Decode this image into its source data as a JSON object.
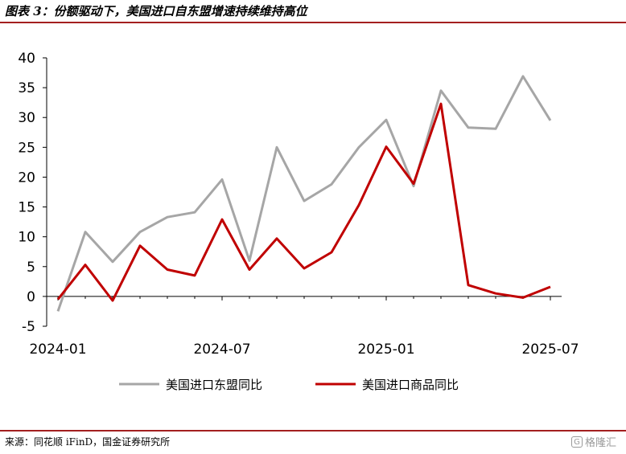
{
  "header": {
    "title": "图表 3：份额驱动下，美国进口自东盟增速持续维持高位"
  },
  "footer": {
    "source": "来源：同花顺 iFinD，国金证券研究所",
    "watermark_icon": "G",
    "watermark_text": "格隆汇"
  },
  "chart_data": {
    "type": "line",
    "title": "",
    "xlabel": "",
    "ylabel": "",
    "ylim": [
      -5,
      40
    ],
    "yticks": [
      -5,
      0,
      5,
      10,
      15,
      20,
      25,
      30,
      35,
      40
    ],
    "ytick_labels": [
      "-5",
      "0",
      "5",
      "10",
      "15",
      "20",
      "25",
      "30",
      "35",
      "40"
    ],
    "x": [
      "2024-01",
      "2024-02",
      "2024-03",
      "2024-04",
      "2024-05",
      "2024-06",
      "2024-07",
      "2024-08",
      "2024-09",
      "2024-10",
      "2024-11",
      "2024-12",
      "2025-01",
      "2025-02",
      "2025-03",
      "2025-04",
      "2025-05",
      "2025-06",
      "2025-07"
    ],
    "xtick_labels": [
      "2024-01",
      "2024-07",
      "2025-01",
      "2025-07"
    ],
    "grid": false,
    "legend": "bottom",
    "series": [
      {
        "name": "美国进口东盟同比",
        "color": "#a6a6a6",
        "values": [
          -2.5,
          10.8,
          5.8,
          10.8,
          13.3,
          14.1,
          19.6,
          6.0,
          25.0,
          16.0,
          18.8,
          25.0,
          29.6,
          18.5,
          34.5,
          28.3,
          28.1,
          36.9,
          29.5
        ]
      },
      {
        "name": "美国进口商品同比",
        "color": "#c00000",
        "values": [
          -0.5,
          5.3,
          -0.7,
          8.5,
          4.5,
          3.5,
          12.9,
          4.5,
          9.7,
          4.7,
          7.4,
          15.3,
          25.1,
          18.9,
          32.3,
          1.9,
          0.5,
          -0.2,
          1.6
        ]
      }
    ]
  }
}
